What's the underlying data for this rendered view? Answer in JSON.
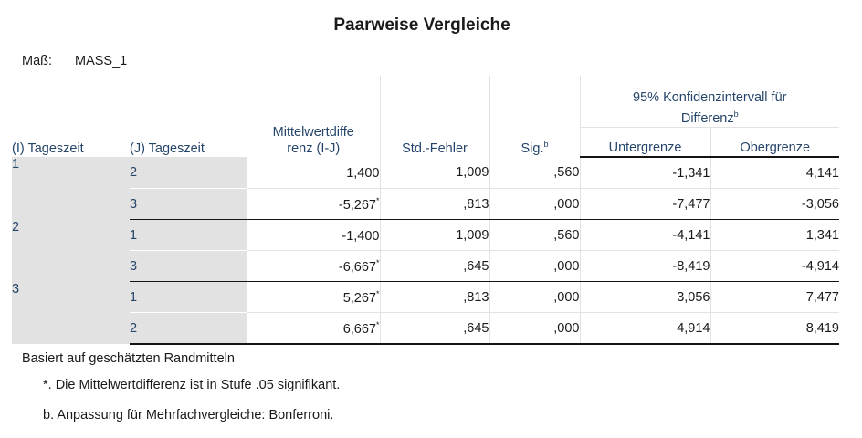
{
  "title": "Paarweise Vergleiche",
  "measure": {
    "label": "Maß:",
    "value": "MASS_1"
  },
  "headers": {
    "i": "(I) Tageszeit",
    "j": "(J) Tageszeit",
    "diff_line1": "Mittelwertdiffe",
    "diff_line2": "renz (I-J)",
    "se": "Std.-Fehler",
    "sig": "Sig.",
    "sig_sup": "b",
    "ci_line1": "95% Konfidenzintervall für",
    "ci_line2": "Differenz",
    "ci_sup": "b",
    "lower": "Untergrenze",
    "upper": "Obergrenze"
  },
  "rows": [
    {
      "i": "1",
      "j": "2",
      "diff": "1,400",
      "star": "",
      "se": "1,009",
      "sig": ",560",
      "lower": "-1,341",
      "upper": "4,141"
    },
    {
      "i": "",
      "j": "3",
      "diff": "-5,267",
      "star": "*",
      "se": ",813",
      "sig": ",000",
      "lower": "-7,477",
      "upper": "-3,056"
    },
    {
      "i": "2",
      "j": "1",
      "diff": "-1,400",
      "star": "",
      "se": "1,009",
      "sig": ",560",
      "lower": "-4,141",
      "upper": "1,341"
    },
    {
      "i": "",
      "j": "3",
      "diff": "-6,667",
      "star": "*",
      "se": ",645",
      "sig": ",000",
      "lower": "-8,419",
      "upper": "-4,914"
    },
    {
      "i": "3",
      "j": "1",
      "diff": "5,267",
      "star": "*",
      "se": ",813",
      "sig": ",000",
      "lower": "3,056",
      "upper": "7,477"
    },
    {
      "i": "",
      "j": "2",
      "diff": "6,667",
      "star": "*",
      "se": ",645",
      "sig": ",000",
      "lower": "4,914",
      "upper": "8,419"
    }
  ],
  "footnotes": {
    "basis": "Basiert auf geschätzten Randmitteln",
    "star": "*. Die Mittelwertdifferenz ist in Stufe .05 signifikant.",
    "b": "b. Anpassung für Mehrfachvergleiche: Bonferroni."
  },
  "colors": {
    "header_text": "#26456a",
    "label_bg": "#e2e2e2"
  }
}
